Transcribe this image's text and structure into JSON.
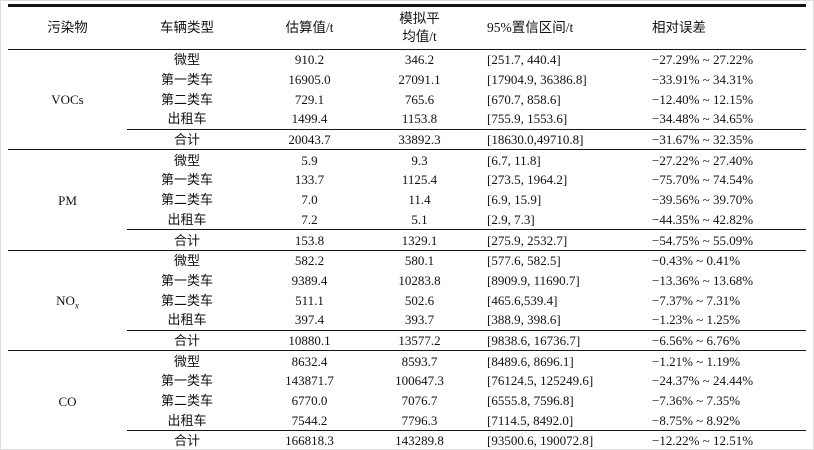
{
  "table": {
    "headers": [
      "污染物",
      "车辆类型",
      "估算值/t",
      "模拟平\n均值/t",
      "95%置信区间/t",
      "相对误差"
    ],
    "sections": [
      {
        "pollutant": "VOCs",
        "pollutant_sub": "",
        "rows": [
          [
            "微型",
            "910.2",
            "346.2",
            "[251.7, 440.4]",
            "−27.29% ~ 27.22%"
          ],
          [
            "第一类车",
            "16905.0",
            "27091.1",
            "[17904.9, 36386.8]",
            "−33.91% ~ 34.31%"
          ],
          [
            "第二类车",
            "729.1",
            "765.6",
            "[670.7, 858.6]",
            "−12.40% ~ 12.15%"
          ],
          [
            "出租车",
            "1499.4",
            "1153.8",
            "[755.9, 1553.6]",
            "−34.48% ~ 34.65%"
          ],
          [
            "合计",
            "20043.7",
            "33892.3",
            "[18630.0,49710.8]",
            "−31.67% ~ 32.35%"
          ]
        ]
      },
      {
        "pollutant": "PM",
        "pollutant_sub": "",
        "rows": [
          [
            "微型",
            "5.9",
            "9.3",
            "[6.7, 11.8]",
            "−27.22% ~ 27.40%"
          ],
          [
            "第一类车",
            "133.7",
            "1125.4",
            "[273.5, 1964.2]",
            "−75.70% ~ 74.54%"
          ],
          [
            "第二类车",
            "7.0",
            "11.4",
            "[6.9, 15.9]",
            "−39.56% ~ 39.70%"
          ],
          [
            "出租车",
            "7.2",
            "5.1",
            "[2.9, 7.3]",
            "−44.35% ~ 42.82%"
          ],
          [
            "合计",
            "153.8",
            "1329.1",
            "[275.9, 2532.7]",
            "−54.75% ~ 55.09%"
          ]
        ]
      },
      {
        "pollutant": "NO",
        "pollutant_sub": "x",
        "rows": [
          [
            "微型",
            "582.2",
            "580.1",
            "[577.6, 582.5]",
            "−0.43% ~ 0.41%"
          ],
          [
            "第一类车",
            "9389.4",
            "10283.8",
            "[8909.9, 11690.7]",
            "−13.36% ~ 13.68%"
          ],
          [
            "第二类车",
            "511.1",
            "502.6",
            "[465.6,539.4]",
            "−7.37% ~ 7.31%"
          ],
          [
            "出租车",
            "397.4",
            "393.7",
            "[388.9, 398.6]",
            "−1.23% ~ 1.25%"
          ],
          [
            "合计",
            "10880.1",
            "13577.2",
            "[9838.6, 16736.7]",
            "−6.56% ~ 6.76%"
          ]
        ]
      },
      {
        "pollutant": "CO",
        "pollutant_sub": "",
        "rows": [
          [
            "微型",
            "8632.4",
            "8593.7",
            "[8489.6, 8696.1]",
            "−1.21% ~ 1.19%"
          ],
          [
            "第一类车",
            "143871.7",
            "100647.3",
            "[76124.5, 125249.6]",
            "−24.37% ~ 24.44%"
          ],
          [
            "第二类车",
            "6770.0",
            "7076.7",
            "[6555.8, 7596.8]",
            "−7.36% ~ 7.35%"
          ],
          [
            "出租车",
            "7544.2",
            "7796.3",
            "[7114.5, 8492.0]",
            "−8.75% ~ 8.92%"
          ],
          [
            "合计",
            "166818.3",
            "143289.8",
            "[93500.6, 190072.8]",
            "−12.22% ~ 12.51%"
          ]
        ]
      }
    ]
  }
}
